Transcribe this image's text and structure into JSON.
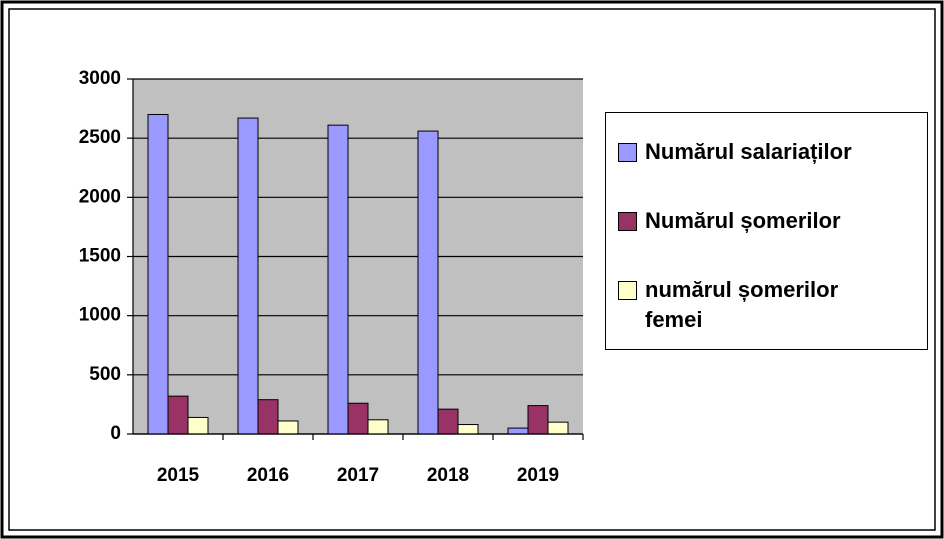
{
  "chart_data": {
    "type": "bar",
    "categories": [
      "2015",
      "2016",
      "2017",
      "2018",
      "2019"
    ],
    "series": [
      {
        "name": "Numărul salariaților",
        "color": "#9999ff",
        "values": [
          2700,
          2670,
          2610,
          2560,
          50
        ]
      },
      {
        "name": "Numărul șomerilor",
        "color": "#993366",
        "values": [
          320,
          290,
          260,
          210,
          240
        ]
      },
      {
        "name": "numărul șomerilor femei",
        "color": "#ffffcc",
        "values": [
          140,
          110,
          120,
          80,
          100
        ]
      }
    ],
    "ylim": [
      0,
      3000
    ],
    "yticks": [
      0,
      500,
      1000,
      1500,
      2000,
      2500,
      3000
    ],
    "grid": true,
    "legend": "right",
    "plot_background": "#c0c0c0"
  }
}
